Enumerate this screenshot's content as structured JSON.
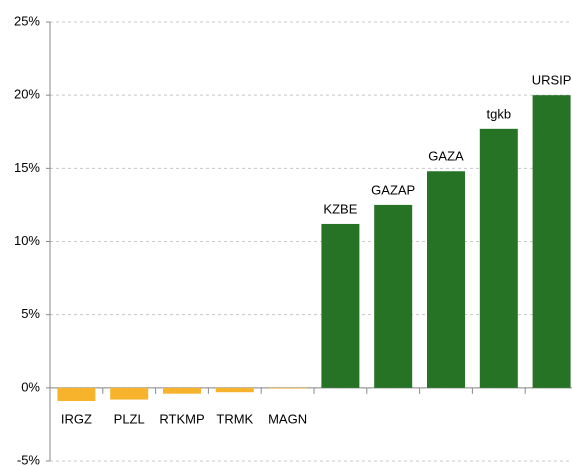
{
  "chart_data": {
    "type": "bar",
    "categories": [
      "IRGZ",
      "PLZL",
      "RTKMP",
      "TRMK",
      "MAGN",
      "KZBE",
      "GAZAP",
      "GAZA",
      "tgkb",
      "URSIP"
    ],
    "values": [
      -0.9,
      -0.8,
      -0.4,
      -0.3,
      -0.05,
      11.2,
      12.5,
      14.8,
      17.7,
      20.0
    ],
    "positive_color": "#267326",
    "negative_color": "#f7b32b",
    "ylim": [
      -5,
      25
    ],
    "yticks": [
      {
        "value": -5,
        "label": "-5%"
      },
      {
        "value": 0,
        "label": "0%"
      },
      {
        "value": 5,
        "label": "5%"
      },
      {
        "value": 10,
        "label": "10%"
      },
      {
        "value": 15,
        "label": "15%"
      },
      {
        "value": 20,
        "label": "20%"
      },
      {
        "value": 25,
        "label": "25%"
      }
    ],
    "grid": true
  }
}
